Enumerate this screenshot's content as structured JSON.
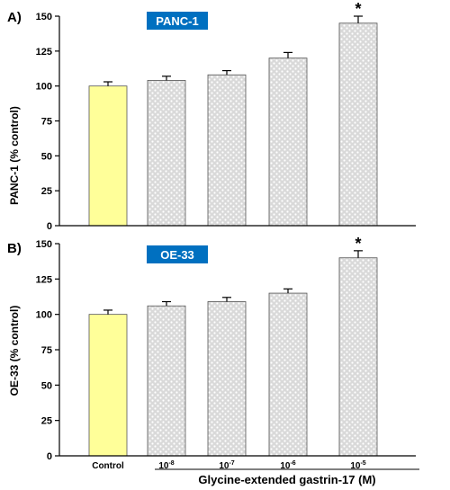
{
  "colors": {
    "control_fill": "#ffff99",
    "treated_fill": "#d9d9d9",
    "badge_bg": "#0070c0",
    "badge_text": "#ffffff",
    "axis": "#000000"
  },
  "chart_data": [
    {
      "type": "bar",
      "panel_letter": "A)",
      "badge": "PANC-1",
      "ylabel": "PANC-1 (% control)",
      "ylim": [
        0,
        150
      ],
      "yticks": [
        0,
        25,
        50,
        75,
        100,
        125,
        150
      ],
      "categories": [
        "Control",
        "10-8",
        "10-7",
        "10-6",
        "10-5"
      ],
      "values": [
        100,
        104,
        108,
        120,
        145
      ],
      "errors": [
        3,
        3,
        3,
        4,
        5
      ],
      "significant": [
        false,
        false,
        false,
        false,
        true
      ],
      "significance_marker": "*"
    },
    {
      "type": "bar",
      "panel_letter": "B)",
      "badge": "OE-33",
      "ylabel": "OE-33 (% control)",
      "ylim": [
        0,
        150
      ],
      "yticks": [
        0,
        25,
        50,
        75,
        100,
        125,
        150
      ],
      "categories": [
        "Control",
        "10-8",
        "10-7",
        "10-6",
        "10-5"
      ],
      "tick_labels": [
        {
          "base": "Control",
          "exp": ""
        },
        {
          "base": "10",
          "exp": "-8"
        },
        {
          "base": "10",
          "exp": "-7"
        },
        {
          "base": "10",
          "exp": "-6"
        },
        {
          "base": "10",
          "exp": "-5"
        }
      ],
      "values": [
        100,
        106,
        109,
        115,
        140
      ],
      "errors": [
        3,
        3,
        3,
        3,
        5
      ],
      "significant": [
        false,
        false,
        false,
        false,
        true
      ],
      "significance_marker": "*",
      "xlabel": "Glycine-extended gastrin-17 (M)"
    }
  ]
}
